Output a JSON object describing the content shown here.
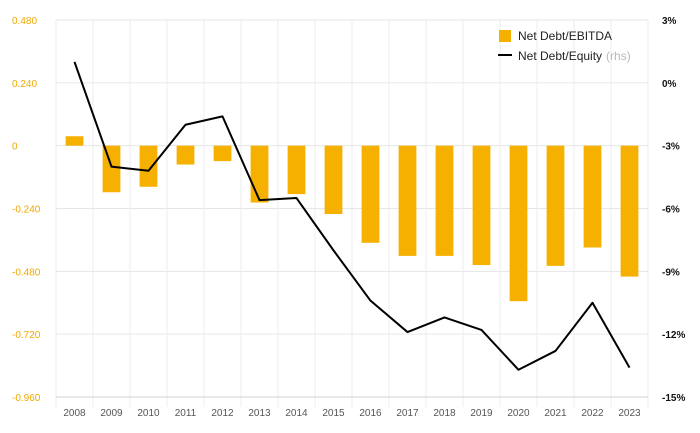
{
  "chart_data": {
    "type": "bar+line",
    "categories": [
      "2008",
      "2009",
      "2010",
      "2011",
      "2012",
      "2013",
      "2014",
      "2015",
      "2016",
      "2017",
      "2018",
      "2019",
      "2020",
      "2021",
      "2022",
      "2023"
    ],
    "series": [
      {
        "name": "Net Debt/EBITDA",
        "type": "bar",
        "axis": "left",
        "color": "#f5b000",
        "values": [
          0.036,
          -0.178,
          -0.157,
          -0.072,
          -0.059,
          -0.217,
          -0.185,
          -0.261,
          -0.371,
          -0.421,
          -0.421,
          -0.456,
          -0.594,
          -0.459,
          -0.389,
          -0.5
        ]
      },
      {
        "name": "Net Debt/Equity",
        "name_note": "(rhs)",
        "type": "line",
        "axis": "right",
        "color": "#000000",
        "values": [
          1.0,
          -4.0,
          -4.2,
          -2.0,
          -1.6,
          -5.6,
          -5.5,
          -8.0,
          -10.4,
          -11.9,
          -11.2,
          -11.8,
          -13.7,
          -12.8,
          -10.5,
          -13.6
        ]
      }
    ],
    "y_left": {
      "ylim": [
        -0.96,
        0.48
      ],
      "ticks": [
        0.48,
        0.24,
        0,
        -0.24,
        -0.48,
        -0.72,
        -0.96
      ],
      "tick_labels": [
        "0.480",
        "0.240",
        "0",
        "-0.240",
        "-0.480",
        "-0.720",
        "-0.960"
      ],
      "color": "#f0a800"
    },
    "y_right": {
      "ylim": [
        -15,
        3
      ],
      "ticks": [
        3,
        0,
        -3,
        -6,
        -9,
        -12,
        -15
      ],
      "tick_labels": [
        "3%",
        "0%",
        "-3%",
        "-6%",
        "-9%",
        "-12%",
        "-15%"
      ],
      "color": "#111111"
    },
    "title": "",
    "xlabel": "",
    "ylabel": "",
    "grid": true,
    "legend_position": "top-right"
  }
}
